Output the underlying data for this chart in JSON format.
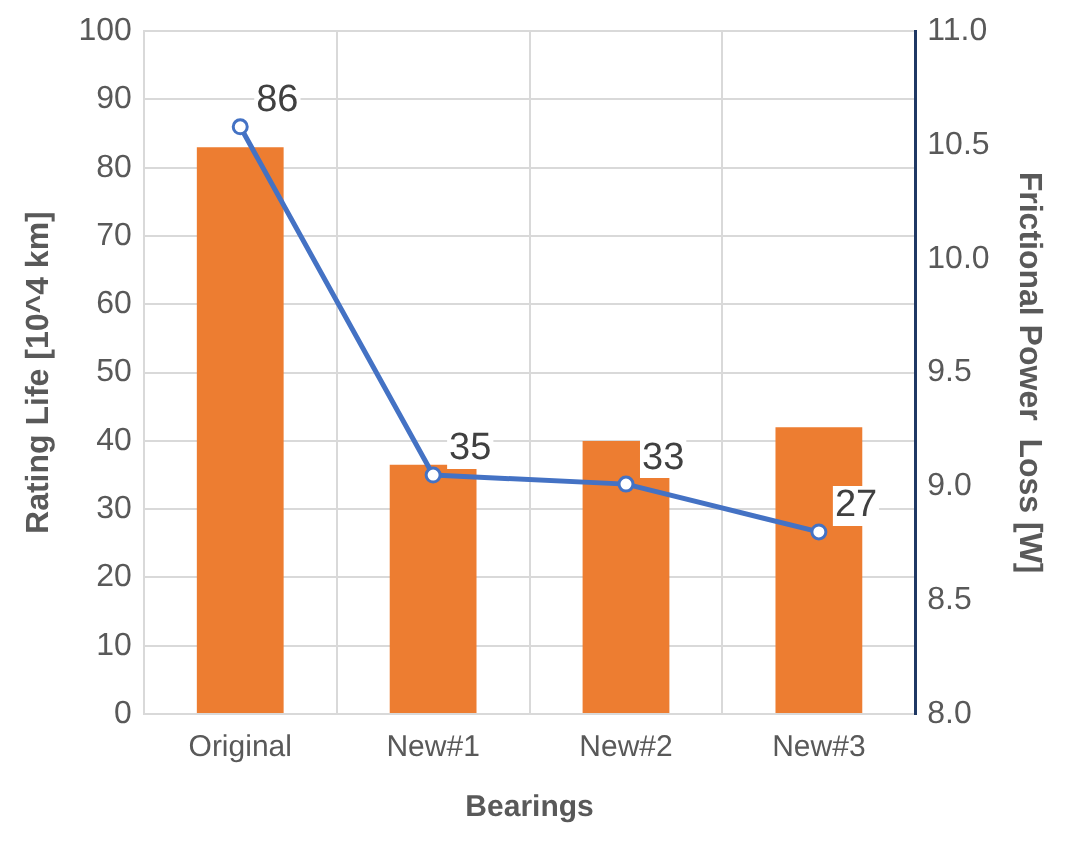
{
  "chart_data": {
    "type": "bar",
    "xlabel": "Bearings",
    "ylabel": "Rating Life [10^4 km]",
    "y2label": "Frictional Power  Loss [W]",
    "categories": [
      "Original",
      "New#1",
      "New#2",
      "New#3"
    ],
    "series": [
      {
        "color": "#ed7d31",
        "values": [
          83,
          36.5,
          40,
          42
        ]
      },
      {
        "type": "line",
        "axis": "y2",
        "color": "#4472c4",
        "values": [
          10.58,
          9.05,
          9.01,
          8.8
        ],
        "marker": "circle"
      }
    ],
    "ylim": [
      0,
      100
    ],
    "yticks": [
      0,
      10,
      20,
      30,
      40,
      50,
      60,
      70,
      80,
      90,
      100
    ],
    "y2lim": [
      8,
      11
    ],
    "y2ticks": [
      {
        "value": 8,
        "label": "8.0"
      },
      {
        "value": 8.5,
        "label": "8.5"
      },
      {
        "value": 9,
        "label": "9.0"
      },
      {
        "value": 9.5,
        "label": "9.5"
      },
      {
        "value": 10,
        "label": "10.0"
      },
      {
        "value": 10.5,
        "label": "10.5"
      },
      {
        "value": 11,
        "label": "11.0"
      }
    ],
    "grid": true,
    "legend": false,
    "annotations": [
      "86",
      "35",
      "33",
      "27"
    ]
  }
}
